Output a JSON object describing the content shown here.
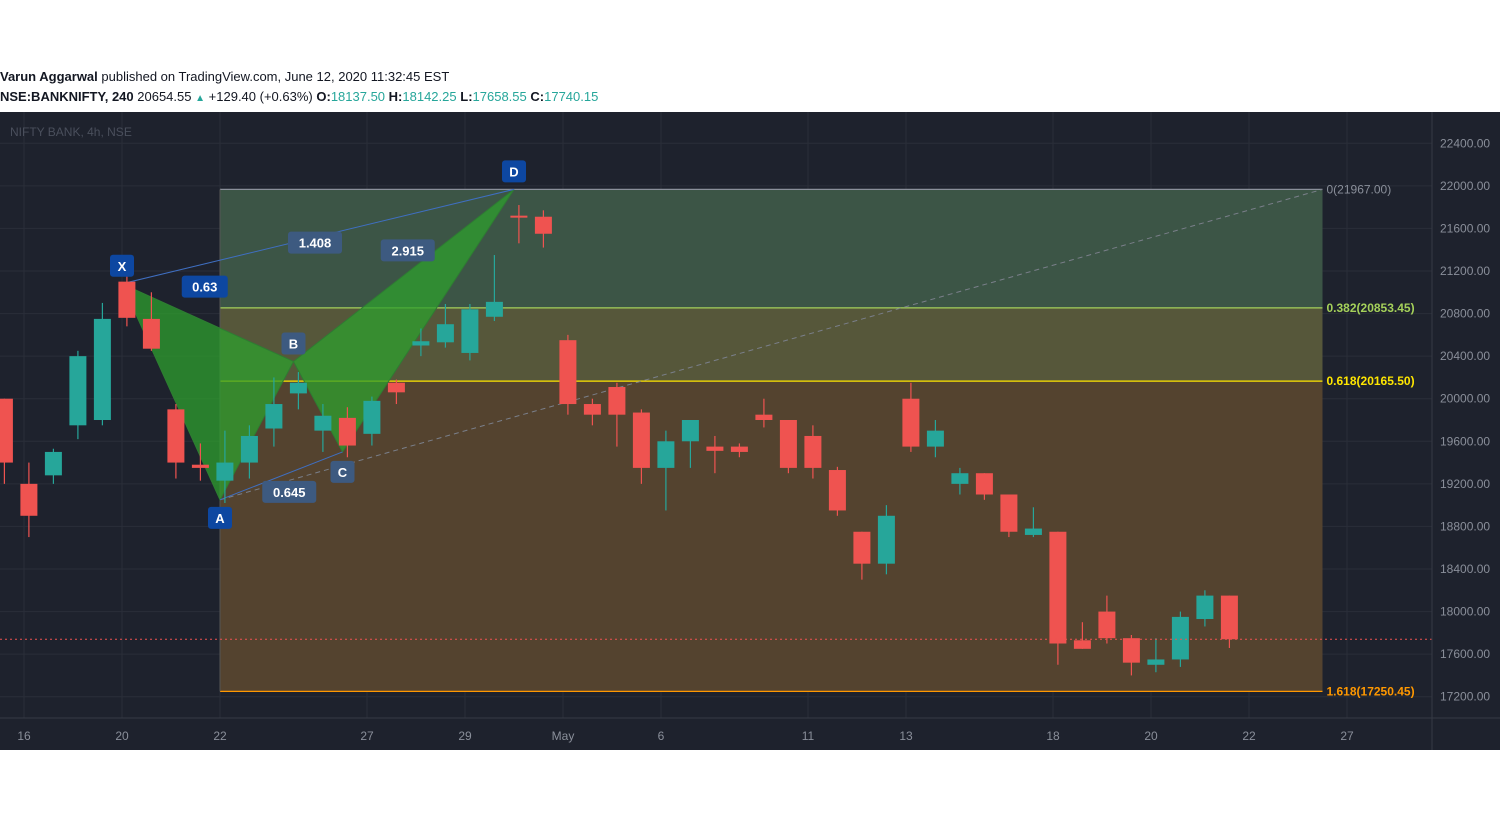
{
  "header": {
    "author": "Varun Aggarwal",
    "published": "published on TradingView.com, June 12, 2020 11:32:45 EST",
    "symbol": "NSE:BANKNIFTY, 240",
    "last": "20654.55",
    "change": "+129.40 (+0.63%)",
    "o_label": "O:",
    "o_value": "18137.50",
    "h_label": "H:",
    "h_value": "18142.25",
    "l_label": "L:",
    "l_value": "17658.55",
    "c_label": "C:",
    "c_value": "17740.15"
  },
  "chart_data": {
    "type": "candlestick",
    "watermark": "NIFTY BANK, 4h, NSE",
    "ylim": [
      17000,
      22600
    ],
    "y_ticks": [
      17200,
      17600,
      18000,
      18400,
      18800,
      19200,
      19600,
      20000,
      20400,
      20800,
      21200,
      21600,
      22000,
      22400
    ],
    "y_tick_labels": [
      "17200.00",
      "17600.00",
      "18000.00",
      "18400.00",
      "18800.00",
      "19200.00",
      "19600.00",
      "20000.00",
      "20400.00",
      "20800.00",
      "21200.00",
      "21600.00",
      "22000.00",
      "22400.00"
    ],
    "x_tick_labels": [
      {
        "label": "16",
        "bar": 0.8
      },
      {
        "label": "20",
        "bar": 4.8
      },
      {
        "label": "22",
        "bar": 8.8
      },
      {
        "label": "27",
        "bar": 14.8
      },
      {
        "label": "29",
        "bar": 18.8
      },
      {
        "label": "May",
        "bar": 22.8
      },
      {
        "label": "6",
        "bar": 26.8
      },
      {
        "label": "11",
        "bar": 32.8
      },
      {
        "label": "13",
        "bar": 36.8
      },
      {
        "label": "18",
        "bar": 42.8
      },
      {
        "label": "20",
        "bar": 46.8
      },
      {
        "label": "22",
        "bar": 50.8
      },
      {
        "label": "27",
        "bar": 54.8
      }
    ],
    "candles": [
      [
        20000,
        20000,
        19200,
        19400
      ],
      [
        19200,
        19400,
        18700,
        18900
      ],
      [
        19280,
        19530,
        19200,
        19500
      ],
      [
        19750,
        20450,
        19620,
        20400
      ],
      [
        19800,
        20900,
        19750,
        20750
      ],
      [
        21100,
        21200,
        20680,
        20760
      ],
      [
        20750,
        21000,
        20450,
        20470
      ],
      [
        19900,
        19950,
        19250,
        19400
      ],
      [
        19380,
        19580,
        19230,
        19350
      ],
      [
        19230,
        19700,
        19020,
        19400
      ],
      [
        19400,
        19750,
        19250,
        19650
      ],
      [
        19720,
        20200,
        19550,
        19950
      ],
      [
        20050,
        20250,
        19900,
        20150
      ],
      [
        19700,
        19950,
        19500,
        19840
      ],
      [
        19820,
        19920,
        19450,
        19560
      ],
      [
        19670,
        20020,
        19560,
        19980
      ],
      [
        20150,
        20180,
        19950,
        20060
      ],
      [
        20500,
        20660,
        20400,
        20540
      ],
      [
        20530,
        20890,
        20480,
        20700
      ],
      [
        20430,
        20890,
        20360,
        20840
      ],
      [
        20770,
        21350,
        20730,
        20910
      ],
      [
        21720,
        21820,
        21460,
        21710
      ],
      [
        21710,
        21770,
        21420,
        21550
      ],
      [
        20550,
        20600,
        19850,
        19950
      ],
      [
        19950,
        20000,
        19750,
        19850
      ],
      [
        20110,
        20150,
        19550,
        19850
      ],
      [
        19870,
        19900,
        19200,
        19350
      ],
      [
        19350,
        19700,
        18950,
        19600
      ],
      [
        19600,
        19800,
        19350,
        19800
      ],
      [
        19550,
        19650,
        19300,
        19510
      ],
      [
        19550,
        19580,
        19450,
        19500
      ],
      [
        19850,
        20000,
        19730,
        19800
      ],
      [
        19800,
        19800,
        19300,
        19350
      ],
      [
        19650,
        19750,
        19250,
        19350
      ],
      [
        19330,
        19360,
        18900,
        18950
      ],
      [
        18750,
        18750,
        18300,
        18450
      ],
      [
        18450,
        19000,
        18350,
        18900
      ],
      [
        20000,
        20150,
        19500,
        19550
      ],
      [
        19550,
        19800,
        19450,
        19700
      ],
      [
        19200,
        19350,
        19100,
        19300
      ],
      [
        19300,
        19300,
        19050,
        19100
      ],
      [
        19100,
        19100,
        18700,
        18750
      ],
      [
        18720,
        18980,
        18700,
        18780
      ],
      [
        18750,
        18750,
        17500,
        17700
      ],
      [
        17730,
        17900,
        17650,
        17650
      ],
      [
        18000,
        18150,
        17700,
        17750
      ],
      [
        17750,
        17780,
        17400,
        17520
      ],
      [
        17500,
        17750,
        17430,
        17550
      ],
      [
        17550,
        18000,
        17480,
        17950
      ],
      [
        17930,
        18200,
        17860,
        18150
      ],
      [
        18150,
        18150,
        17658,
        17740
      ]
    ],
    "harmonic_pattern": {
      "points": [
        {
          "label": "X",
          "bar": 4.8,
          "price": 21080
        },
        {
          "label": "A",
          "bar": 8.8,
          "price": 19050
        },
        {
          "label": "B",
          "bar": 11.8,
          "price": 20350
        },
        {
          "label": "C",
          "bar": 13.8,
          "price": 19500
        },
        {
          "label": "D",
          "bar": 20.8,
          "price": 21967
        }
      ],
      "ratios": [
        "0.63",
        "0.645",
        "2.915",
        "1.408"
      ]
    },
    "fib_levels": [
      {
        "label": "0(21967.00)",
        "price": 21967.0,
        "color": "#8a8f9a"
      },
      {
        "label": "0.382(20853.45)",
        "price": 20853.45,
        "color": "#a5d15a"
      },
      {
        "label": "0.618(20165.50)",
        "price": 20165.5,
        "color": "#ffe600"
      },
      {
        "label": "1.618(17250.45)",
        "price": 17250.45,
        "color": "#ff9800"
      }
    ],
    "current_price": 17740.15
  },
  "colors": {
    "background": "#1e222d",
    "up_candle": "#26a69a",
    "down_candle": "#ef5350",
    "pattern_fill": "#2e9f2e",
    "label_blue": "#0d47a1"
  }
}
